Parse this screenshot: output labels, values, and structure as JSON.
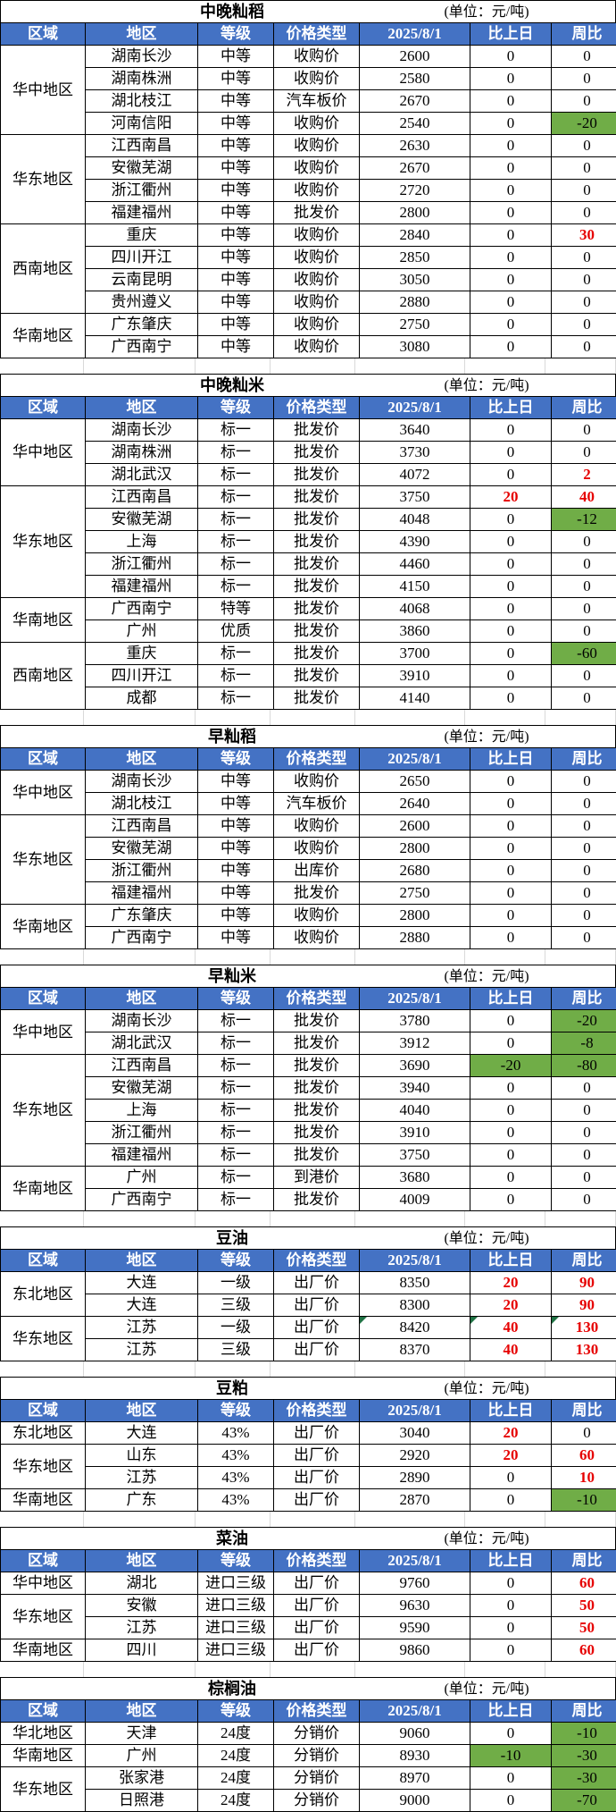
{
  "unit_label": "(单位：元/吨)",
  "columns": [
    "区域",
    "地区",
    "等级",
    "价格类型",
    "2025/8/1",
    "比上日",
    "周比"
  ],
  "palette": {
    "header_bg": "#4472C4",
    "header_text": "#FFFFFF",
    "rise_red_text": "#E60000",
    "fall_green_bg": "#70AD47",
    "note_triangle_green": "#1F7244"
  },
  "tables": [
    {
      "title": "中晚籼稻",
      "groups": [
        {
          "region": "华中地区",
          "rows": [
            {
              "area": "湖南长沙",
              "grade": "中等",
              "price_type": "收购价",
              "price": "2600",
              "vs_day": "0",
              "vs_week": "0"
            },
            {
              "area": "湖南株洲",
              "grade": "中等",
              "price_type": "收购价",
              "price": "2580",
              "vs_day": "0",
              "vs_week": "0"
            },
            {
              "area": "湖北枝江",
              "grade": "中等",
              "price_type": "汽车板价",
              "price": "2670",
              "vs_day": "0",
              "vs_week": "0"
            },
            {
              "area": "河南信阳",
              "grade": "中等",
              "price_type": "收购价",
              "price": "2540",
              "vs_day": "0",
              "vs_week": "-20",
              "vs_week_style": "green"
            }
          ]
        },
        {
          "region": "华东地区",
          "rows": [
            {
              "area": "江西南昌",
              "grade": "中等",
              "price_type": "收购价",
              "price": "2630",
              "vs_day": "0",
              "vs_week": "0"
            },
            {
              "area": "安徽芜湖",
              "grade": "中等",
              "price_type": "收购价",
              "price": "2670",
              "vs_day": "0",
              "vs_week": "0"
            },
            {
              "area": "浙江衢州",
              "grade": "中等",
              "price_type": "收购价",
              "price": "2720",
              "vs_day": "0",
              "vs_week": "0"
            },
            {
              "area": "福建福州",
              "grade": "中等",
              "price_type": "批发价",
              "price": "2800",
              "vs_day": "0",
              "vs_week": "0"
            }
          ]
        },
        {
          "region": "西南地区",
          "rows": [
            {
              "area": "重庆",
              "grade": "中等",
              "price_type": "收购价",
              "price": "2840",
              "vs_day": "0",
              "vs_week": "30",
              "vs_week_style": "red"
            },
            {
              "area": "四川开江",
              "grade": "中等",
              "price_type": "收购价",
              "price": "2850",
              "vs_day": "0",
              "vs_week": "0"
            },
            {
              "area": "云南昆明",
              "grade": "中等",
              "price_type": "收购价",
              "price": "3050",
              "vs_day": "0",
              "vs_week": "0"
            },
            {
              "area": "贵州遵义",
              "grade": "中等",
              "price_type": "收购价",
              "price": "2880",
              "vs_day": "0",
              "vs_week": "0"
            }
          ]
        },
        {
          "region": "华南地区",
          "rows": [
            {
              "area": "广东肇庆",
              "grade": "中等",
              "price_type": "收购价",
              "price": "2750",
              "vs_day": "0",
              "vs_week": "0"
            },
            {
              "area": "广西南宁",
              "grade": "中等",
              "price_type": "收购价",
              "price": "3080",
              "vs_day": "0",
              "vs_week": "0"
            }
          ]
        }
      ]
    },
    {
      "title": "中晚籼米",
      "groups": [
        {
          "region": "华中地区",
          "rows": [
            {
              "area": "湖南长沙",
              "grade": "标一",
              "price_type": "批发价",
              "price": "3640",
              "vs_day": "0",
              "vs_week": "0"
            },
            {
              "area": "湖南株洲",
              "grade": "标一",
              "price_type": "批发价",
              "price": "3730",
              "vs_day": "0",
              "vs_week": "0"
            },
            {
              "area": "湖北武汉",
              "grade": "标一",
              "price_type": "批发价",
              "price": "4072",
              "vs_day": "0",
              "vs_week": "2",
              "vs_week_style": "red"
            }
          ]
        },
        {
          "region": "华东地区",
          "rows": [
            {
              "area": "江西南昌",
              "grade": "标一",
              "price_type": "批发价",
              "price": "3750",
              "vs_day": "20",
              "vs_day_style": "red",
              "vs_week": "40",
              "vs_week_style": "red"
            },
            {
              "area": "安徽芜湖",
              "grade": "标一",
              "price_type": "批发价",
              "price": "4048",
              "vs_day": "0",
              "vs_week": "-12",
              "vs_week_style": "green"
            },
            {
              "area": "上海",
              "grade": "标一",
              "price_type": "批发价",
              "price": "4390",
              "vs_day": "0",
              "vs_week": "0"
            },
            {
              "area": "浙江衢州",
              "grade": "标一",
              "price_type": "批发价",
              "price": "4460",
              "vs_day": "0",
              "vs_week": "0"
            },
            {
              "area": "福建福州",
              "grade": "标一",
              "price_type": "批发价",
              "price": "4150",
              "vs_day": "0",
              "vs_week": "0"
            }
          ]
        },
        {
          "region": "华南地区",
          "rows": [
            {
              "area": "广西南宁",
              "grade": "特等",
              "price_type": "批发价",
              "price": "4068",
              "vs_day": "0",
              "vs_week": "0"
            },
            {
              "area": "广州",
              "grade": "优质",
              "price_type": "批发价",
              "price": "3860",
              "vs_day": "0",
              "vs_week": "0"
            }
          ]
        },
        {
          "region": "西南地区",
          "rows": [
            {
              "area": "重庆",
              "grade": "标一",
              "price_type": "批发价",
              "price": "3700",
              "vs_day": "0",
              "vs_week": "-60",
              "vs_week_style": "green"
            },
            {
              "area": "四川开江",
              "grade": "标一",
              "price_type": "批发价",
              "price": "3910",
              "vs_day": "0",
              "vs_week": "0"
            },
            {
              "area": "成都",
              "grade": "标一",
              "price_type": "批发价",
              "price": "4140",
              "vs_day": "0",
              "vs_week": "0"
            }
          ]
        }
      ]
    },
    {
      "title": "早籼稻",
      "groups": [
        {
          "region": "华中地区",
          "rows": [
            {
              "area": "湖南长沙",
              "grade": "中等",
              "price_type": "收购价",
              "price": "2650",
              "vs_day": "0",
              "vs_week": "0"
            },
            {
              "area": "湖北枝江",
              "grade": "中等",
              "price_type": "汽车板价",
              "price": "2640",
              "vs_day": "0",
              "vs_week": "0"
            }
          ]
        },
        {
          "region": "华东地区",
          "rows": [
            {
              "area": "江西南昌",
              "grade": "中等",
              "price_type": "收购价",
              "price": "2600",
              "vs_day": "0",
              "vs_week": "0"
            },
            {
              "area": "安徽芜湖",
              "grade": "中等",
              "price_type": "收购价",
              "price": "2800",
              "vs_day": "0",
              "vs_week": "0"
            },
            {
              "area": "浙江衢州",
              "grade": "中等",
              "price_type": "出库价",
              "price": "2680",
              "vs_day": "0",
              "vs_week": "0"
            },
            {
              "area": "福建福州",
              "grade": "中等",
              "price_type": "批发价",
              "price": "2750",
              "vs_day": "0",
              "vs_week": "0"
            }
          ]
        },
        {
          "region": "华南地区",
          "rows": [
            {
              "area": "广东肇庆",
              "grade": "中等",
              "price_type": "收购价",
              "price": "2800",
              "vs_day": "0",
              "vs_week": "0"
            },
            {
              "area": "广西南宁",
              "grade": "中等",
              "price_type": "收购价",
              "price": "2880",
              "vs_day": "0",
              "vs_week": "0"
            }
          ]
        }
      ]
    },
    {
      "title": "早籼米",
      "groups": [
        {
          "region": "华中地区",
          "rows": [
            {
              "area": "湖南长沙",
              "grade": "标一",
              "price_type": "批发价",
              "price": "3780",
              "vs_day": "0",
              "vs_week": "-20",
              "vs_week_style": "green"
            },
            {
              "area": "湖北武汉",
              "grade": "标一",
              "price_type": "批发价",
              "price": "3912",
              "vs_day": "0",
              "vs_week": "-8",
              "vs_week_style": "green"
            }
          ]
        },
        {
          "region": "华东地区",
          "rows": [
            {
              "area": "江西南昌",
              "grade": "标一",
              "price_type": "批发价",
              "price": "3690",
              "vs_day": "-20",
              "vs_day_style": "green",
              "vs_week": "-80",
              "vs_week_style": "green"
            },
            {
              "area": "安徽芜湖",
              "grade": "标一",
              "price_type": "批发价",
              "price": "3940",
              "vs_day": "0",
              "vs_week": "0"
            },
            {
              "area": "上海",
              "grade": "标一",
              "price_type": "批发价",
              "price": "4040",
              "vs_day": "0",
              "vs_week": "0"
            },
            {
              "area": "浙江衢州",
              "grade": "标一",
              "price_type": "批发价",
              "price": "3910",
              "vs_day": "0",
              "vs_week": "0"
            },
            {
              "area": "福建福州",
              "grade": "标一",
              "price_type": "批发价",
              "price": "3750",
              "vs_day": "0",
              "vs_week": "0"
            }
          ]
        },
        {
          "region": "华南地区",
          "rows": [
            {
              "area": "广州",
              "grade": "标一",
              "price_type": "到港价",
              "price": "3680",
              "vs_day": "0",
              "vs_week": "0"
            },
            {
              "area": "广西南宁",
              "grade": "标一",
              "price_type": "批发价",
              "price": "4009",
              "vs_day": "0",
              "vs_week": "0"
            }
          ]
        }
      ]
    },
    {
      "title": "豆油",
      "groups": [
        {
          "region": "东北地区",
          "rows": [
            {
              "area": "大连",
              "grade": "一级",
              "price_type": "出厂价",
              "price": "8350",
              "vs_day": "20",
              "vs_day_style": "red",
              "vs_week": "90",
              "vs_week_style": "red"
            },
            {
              "area": "大连",
              "grade": "三级",
              "price_type": "出厂价",
              "price": "8300",
              "vs_day": "20",
              "vs_day_style": "red",
              "vs_week": "90",
              "vs_week_style": "red"
            }
          ]
        },
        {
          "region": "华东地区",
          "rows": [
            {
              "area": "江苏",
              "grade": "一级",
              "price_type": "出厂价",
              "price": "8420",
              "vs_day": "40",
              "vs_day_style": "red",
              "vs_week": "130",
              "vs_week_style": "red",
              "has_note_triangles": true
            },
            {
              "area": "江苏",
              "grade": "三级",
              "price_type": "出厂价",
              "price": "8370",
              "vs_day": "40",
              "vs_day_style": "red",
              "vs_week": "130",
              "vs_week_style": "red"
            }
          ]
        }
      ]
    },
    {
      "title": "豆粕",
      "groups": [
        {
          "region": "东北地区",
          "rows": [
            {
              "area": "大连",
              "grade": "43%",
              "price_type": "出厂价",
              "price": "3040",
              "vs_day": "20",
              "vs_day_style": "red",
              "vs_week": "0"
            }
          ]
        },
        {
          "region": "华东地区",
          "rows": [
            {
              "area": "山东",
              "grade": "43%",
              "price_type": "出厂价",
              "price": "2920",
              "vs_day": "20",
              "vs_day_style": "red",
              "vs_week": "60",
              "vs_week_style": "red"
            },
            {
              "area": "江苏",
              "grade": "43%",
              "price_type": "出厂价",
              "price": "2890",
              "vs_day": "0",
              "vs_week": "10",
              "vs_week_style": "red"
            }
          ]
        },
        {
          "region": "华南地区",
          "rows": [
            {
              "area": "广东",
              "grade": "43%",
              "price_type": "出厂价",
              "price": "2870",
              "vs_day": "0",
              "vs_week": "-10",
              "vs_week_style": "green"
            }
          ]
        }
      ]
    },
    {
      "title": "菜油",
      "groups": [
        {
          "region": "华中地区",
          "rows": [
            {
              "area": "湖北",
              "grade": "进口三级",
              "price_type": "出厂价",
              "price": "9760",
              "vs_day": "0",
              "vs_week": "60",
              "vs_week_style": "red"
            }
          ]
        },
        {
          "region": "华东地区",
          "rows": [
            {
              "area": "安徽",
              "grade": "进口三级",
              "price_type": "出厂价",
              "price": "9630",
              "vs_day": "0",
              "vs_week": "50",
              "vs_week_style": "red"
            },
            {
              "area": "江苏",
              "grade": "进口三级",
              "price_type": "出厂价",
              "price": "9590",
              "vs_day": "0",
              "vs_week": "50",
              "vs_week_style": "red"
            }
          ]
        },
        {
          "region": "华南地区",
          "rows": [
            {
              "area": "四川",
              "grade": "进口三级",
              "price_type": "出厂价",
              "price": "9860",
              "vs_day": "0",
              "vs_week": "60",
              "vs_week_style": "red"
            }
          ]
        }
      ]
    },
    {
      "title": "棕榈油",
      "groups": [
        {
          "region": "华北地区",
          "rows": [
            {
              "area": "天津",
              "grade": "24度",
              "price_type": "分销价",
              "price": "9060",
              "vs_day": "0",
              "vs_week": "-10",
              "vs_week_style": "green"
            }
          ]
        },
        {
          "region": "华南地区",
          "rows": [
            {
              "area": "广州",
              "grade": "24度",
              "price_type": "分销价",
              "price": "8930",
              "vs_day": "-10",
              "vs_day_style": "green",
              "vs_week": "-30",
              "vs_week_style": "green"
            }
          ]
        },
        {
          "region": "华东地区",
          "rows": [
            {
              "area": "张家港",
              "grade": "24度",
              "price_type": "分销价",
              "price": "8970",
              "vs_day": "0",
              "vs_week": "-30",
              "vs_week_style": "green"
            },
            {
              "area": "日照港",
              "grade": "24度",
              "price_type": "分销价",
              "price": "9000",
              "vs_day": "0",
              "vs_week": "-70",
              "vs_week_style": "green"
            }
          ]
        }
      ]
    }
  ]
}
